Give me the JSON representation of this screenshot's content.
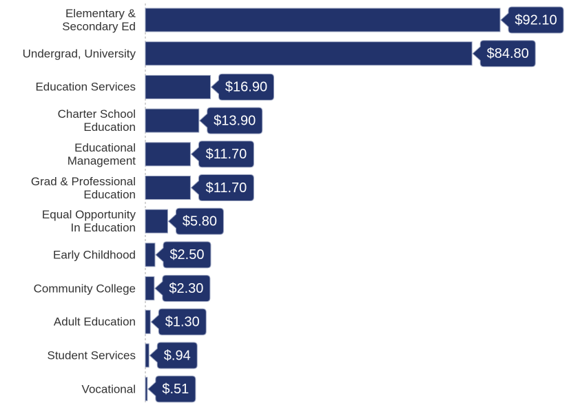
{
  "chart_data": {
    "type": "bar",
    "orientation": "horizontal",
    "color": "#22336b",
    "categories": [
      "Elementary &\nSecondary Ed",
      "Undergrad, University",
      "Education Services",
      "Charter School\nEducation",
      "Educational\nManagement",
      "Grad & Professional\nEducation",
      "Equal Opportunity\nIn Education",
      "Early Childhood",
      "Community College",
      "Adult Education",
      "Student Services",
      "Vocational"
    ],
    "values": [
      92.1,
      84.8,
      16.9,
      13.9,
      11.7,
      11.7,
      5.8,
      2.5,
      2.3,
      1.3,
      0.94,
      0.51
    ],
    "value_labels": [
      "$92.10",
      "$84.80",
      "$16.90",
      "$13.90",
      "$11.70",
      "$11.70",
      "$5.80",
      "$2.50",
      "$2.30",
      "$1.30",
      "$.94",
      "$.51"
    ]
  }
}
